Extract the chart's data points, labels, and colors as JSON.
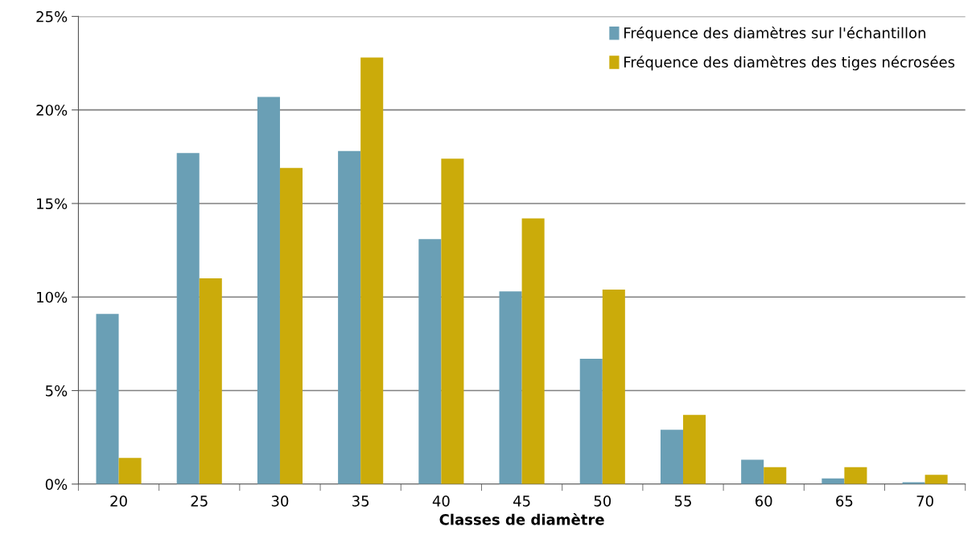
{
  "chart_data": {
    "type": "bar",
    "xlabel": "Classes de diamètre",
    "categories": [
      "20",
      "25",
      "30",
      "35",
      "40",
      "45",
      "50",
      "55",
      "60",
      "65",
      "70"
    ],
    "series": [
      {
        "name": "Fréquence des diamètres sur l'échantillon",
        "color": "#6a9fb5",
        "values": [
          9.1,
          17.7,
          20.7,
          17.8,
          13.1,
          10.3,
          6.7,
          2.9,
          1.3,
          0.3,
          0.1
        ]
      },
      {
        "name": "Fréquence des diamètres des tiges nécrosées",
        "color": "#cbab0a",
        "values": [
          1.4,
          11.0,
          16.9,
          22.8,
          17.4,
          14.2,
          10.4,
          3.7,
          0.9,
          0.9,
          0.5
        ]
      }
    ],
    "ylim": [
      0,
      25
    ],
    "yticks": [
      {
        "value": 0,
        "label": "0%"
      },
      {
        "value": 5,
        "label": "5%"
      },
      {
        "value": 10,
        "label": "10%"
      },
      {
        "value": 15,
        "label": "15%"
      },
      {
        "value": 20,
        "label": "20%"
      },
      {
        "value": 25,
        "label": "25%"
      }
    ],
    "grid": "y",
    "legend": "top right"
  }
}
